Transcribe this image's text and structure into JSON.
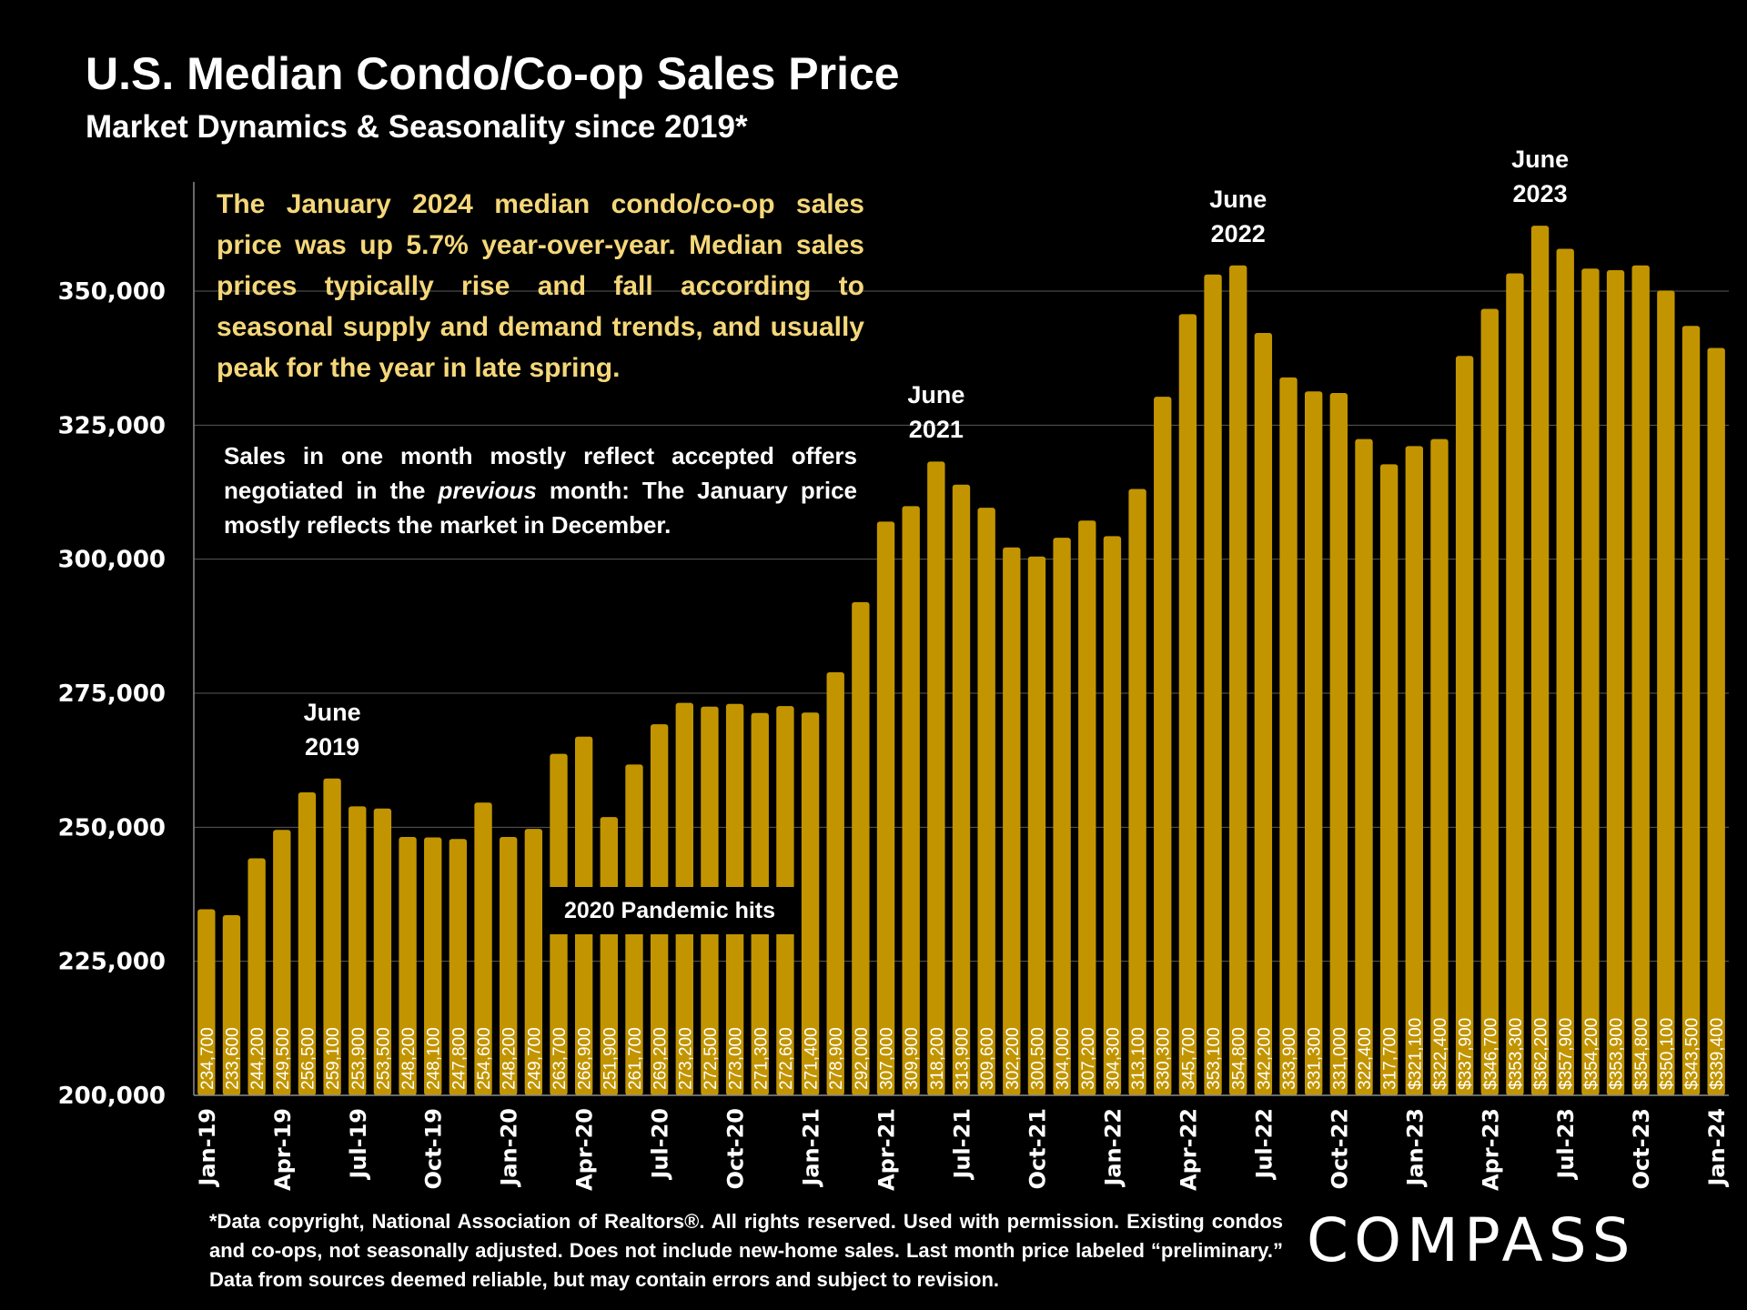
{
  "header": {
    "title": "U.S. Median Condo/Co-op Sales Price",
    "subtitle": "Market Dynamics & Seasonality since 2019*"
  },
  "annotations": {
    "gold_note": "The January 2024 median condo/co-op sales price was up 5.7% year-over-year. Median sales prices typically rise and fall according to seasonal supply and demand trends, and usually peak for the year in late spring.",
    "white_note_before": "Sales in one month mostly reflect accepted offers negotiated in the ",
    "white_note_italic": "previous",
    "white_note_after": " month: The January price mostly reflects the market in December.",
    "pandemic_label": "2020 Pandemic hits",
    "peaks": [
      {
        "line1": "June",
        "line2": "2019",
        "month_index": 5
      },
      {
        "line1": "June",
        "line2": "2021",
        "month_index": 29
      },
      {
        "line1": "June",
        "line2": "2022",
        "month_index": 41
      },
      {
        "line1": "June",
        "line2": "2023",
        "month_index": 53
      }
    ]
  },
  "footer": {
    "disclaimer": "*Data copyright, National Association of Realtors®. All rights reserved. Used with permission. Existing condos and co-ops, not seasonally adjusted. Does not include new-home sales. Last month price labeled “preliminary.” Data from sources deemed reliable, but may contain errors and subject to revision.",
    "logo": "COMPASS"
  },
  "colors": {
    "bar": "#c29500",
    "background": "#000000",
    "gold_text": "#f5d77a",
    "gridline": "#5a5a5a"
  },
  "chart_data": {
    "type": "bar",
    "title": "U.S. Median Condo/Co-op Sales Price",
    "subtitle": "Market Dynamics & Seasonality since 2019*",
    "xlabel": "",
    "ylabel": "",
    "ylim": [
      200000,
      362200
    ],
    "yticks": [
      200000,
      225000,
      250000,
      275000,
      300000,
      325000,
      350000
    ],
    "ytick_labels": [
      "200,000",
      "225,000",
      "250,000",
      "275,000",
      "300,000",
      "325,000",
      "350,000"
    ],
    "grid": true,
    "xtick_labels": [
      "Jan-19",
      "Apr-19",
      "Jul-19",
      "Oct-19",
      "Jan-20",
      "Apr-20",
      "Jul-20",
      "Oct-20",
      "Jan-21",
      "Apr-21",
      "Jul-21",
      "Oct-21",
      "Jan-22",
      "Apr-22",
      "Jul-22",
      "Oct-22",
      "Jan-23",
      "Apr-23",
      "Jul-23",
      "Oct-23",
      "Jan-24"
    ],
    "xtick_every": 3,
    "categories": [
      "Jan-19",
      "Feb-19",
      "Mar-19",
      "Apr-19",
      "May-19",
      "Jun-19",
      "Jul-19",
      "Aug-19",
      "Sep-19",
      "Oct-19",
      "Nov-19",
      "Dec-19",
      "Jan-20",
      "Feb-20",
      "Mar-20",
      "Apr-20",
      "May-20",
      "Jun-20",
      "Jul-20",
      "Aug-20",
      "Sep-20",
      "Oct-20",
      "Nov-20",
      "Dec-20",
      "Jan-21",
      "Feb-21",
      "Mar-21",
      "Apr-21",
      "May-21",
      "Jun-21",
      "Jul-21",
      "Aug-21",
      "Sep-21",
      "Oct-21",
      "Nov-21",
      "Dec-21",
      "Jan-22",
      "Feb-22",
      "Mar-22",
      "Apr-22",
      "May-22",
      "Jun-22",
      "Jul-22",
      "Aug-22",
      "Sep-22",
      "Oct-22",
      "Nov-22",
      "Dec-22",
      "Jan-23",
      "Feb-23",
      "Mar-23",
      "Apr-23",
      "May-23",
      "Jun-23",
      "Jul-23",
      "Aug-23",
      "Sep-23",
      "Oct-23",
      "Nov-23",
      "Dec-23",
      "Jan-24"
    ],
    "values": [
      234700,
      233600,
      244200,
      249500,
      256500,
      259100,
      253900,
      253500,
      248200,
      248100,
      247800,
      254600,
      248200,
      249700,
      263700,
      266900,
      251900,
      261700,
      269200,
      273200,
      272500,
      273000,
      271300,
      272600,
      271400,
      278900,
      292000,
      307000,
      309900,
      318200,
      313900,
      309600,
      302200,
      300500,
      304000,
      307200,
      304300,
      313100,
      330300,
      345700,
      353100,
      354800,
      342200,
      333900,
      331300,
      331000,
      322400,
      317700,
      321100,
      322400,
      337900,
      346700,
      353300,
      362200,
      357900,
      354200,
      353900,
      354800,
      350100,
      343500,
      339400
    ],
    "value_labels": [
      "234,700",
      "233,600",
      "244,200",
      "249,500",
      "256,500",
      "259,100",
      "253,900",
      "253,500",
      "248,200",
      "248,100",
      "247,800",
      "254,600",
      "248,200",
      "249,700",
      "263,700",
      "266,900",
      "251,900",
      "261,700",
      "269,200",
      "273,200",
      "272,500",
      "273,000",
      "271,300",
      "272,600",
      "271,400",
      "278,900",
      "292,000",
      "307,000",
      "309,900",
      "318,200",
      "313,900",
      "309,600",
      "302,200",
      "300,500",
      "304,000",
      "307,200",
      "304,300",
      "313,100",
      "330,300",
      "345,700",
      "353,100",
      "354,800",
      "342,200",
      "333,900",
      "331,300",
      "331,000",
      "322,400",
      "317,700",
      "$321,100",
      "$322,400",
      "$337,900",
      "$346,700",
      "$353,300",
      "$362,200",
      "$357,900",
      "$354,200",
      "$353,900",
      "$354,800",
      "$350,100",
      "$343,500",
      "$339,400"
    ]
  }
}
